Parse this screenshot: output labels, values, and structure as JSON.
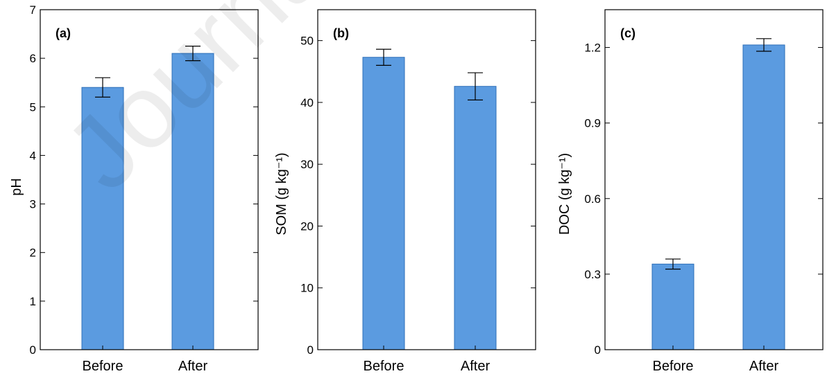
{
  "watermark": "Journal Pre-proof",
  "chart_data": [
    {
      "type": "bar",
      "panel_label": "(a)",
      "ylabel": "pH",
      "categories": [
        "Before",
        "After"
      ],
      "values": [
        5.4,
        6.1
      ],
      "errors": [
        0.2,
        0.15
      ],
      "ylim": [
        0,
        7
      ],
      "yticks": [
        0,
        1,
        2,
        3,
        4,
        5,
        6,
        7
      ],
      "ytick_labels": [
        "0",
        "1",
        "2",
        "3",
        "4",
        "5",
        "6",
        "7"
      ],
      "bar_color": "#5b9be0"
    },
    {
      "type": "bar",
      "panel_label": "(b)",
      "ylabel": "SOM (g kg⁻¹)",
      "categories": [
        "Before",
        "After"
      ],
      "values": [
        47.3,
        42.6
      ],
      "errors": [
        1.3,
        2.2
      ],
      "ylim": [
        0,
        55
      ],
      "yticks": [
        0,
        10,
        20,
        30,
        40,
        50
      ],
      "ytick_labels": [
        "0",
        "10",
        "20",
        "30",
        "40",
        "50"
      ],
      "bar_color": "#5b9be0"
    },
    {
      "type": "bar",
      "panel_label": "(c)",
      "ylabel": "DOC (g kg⁻¹)",
      "categories": [
        "Before",
        "After"
      ],
      "values": [
        0.34,
        1.21
      ],
      "errors": [
        0.02,
        0.025
      ],
      "ylim": [
        0,
        1.35
      ],
      "yticks": [
        0,
        0.3,
        0.6,
        0.9,
        1.2
      ],
      "ytick_labels": [
        "0",
        "0.3",
        "0.6",
        "0.9",
        "1.2"
      ],
      "bar_color": "#5b9be0"
    }
  ]
}
